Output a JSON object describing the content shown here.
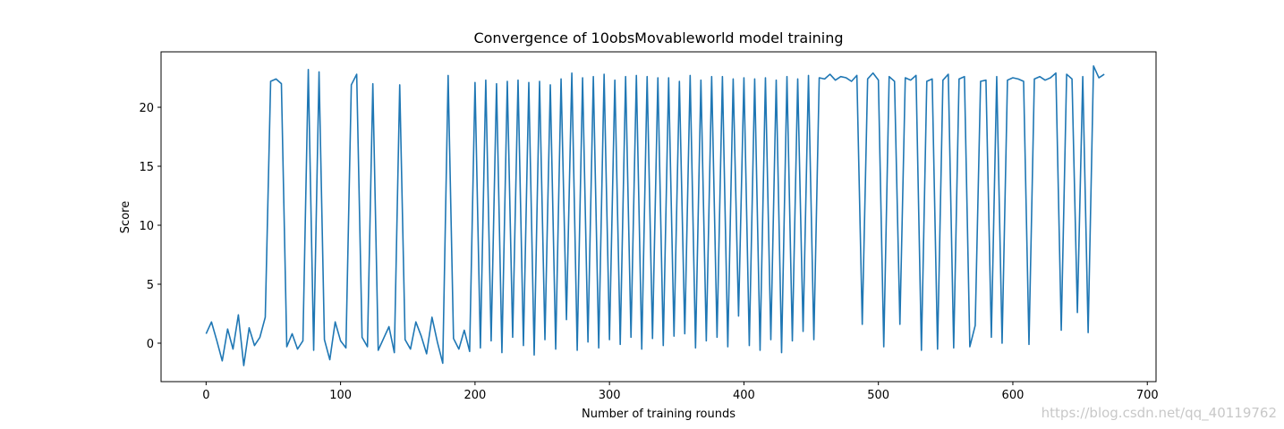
{
  "chart_data": {
    "type": "line",
    "title": "Convergence of 10obsMovableworld model training",
    "x_label": "Number of training rounds",
    "y_label": "Score",
    "watermark": "https://blog.csdn.net/qq_40119762",
    "color": "#1f77b4",
    "x": [
      0,
      4,
      8,
      12,
      16,
      20,
      24,
      28,
      32,
      36,
      40,
      44,
      48,
      52,
      56,
      60,
      64,
      68,
      72,
      76,
      80,
      84,
      88,
      92,
      96,
      100,
      104,
      108,
      112,
      116,
      120,
      124,
      128,
      132,
      136,
      140,
      144,
      148,
      152,
      156,
      160,
      164,
      168,
      172,
      176,
      180,
      184,
      188,
      192,
      196,
      200,
      204,
      208,
      212,
      216,
      220,
      224,
      228,
      232,
      236,
      240,
      244,
      248,
      252,
      256,
      260,
      264,
      268,
      272,
      276,
      280,
      284,
      288,
      292,
      296,
      300,
      304,
      308,
      312,
      316,
      320,
      324,
      328,
      332,
      336,
      340,
      344,
      348,
      352,
      356,
      360,
      364,
      368,
      372,
      376,
      380,
      384,
      388,
      392,
      396,
      400,
      404,
      408,
      412,
      416,
      420,
      424,
      428,
      432,
      436,
      440,
      444,
      448,
      452,
      456,
      460,
      464,
      468,
      472,
      476,
      480,
      484,
      488,
      492,
      496,
      500,
      504,
      508,
      512,
      516,
      520,
      524,
      528,
      532,
      536,
      540,
      544,
      548,
      552,
      556,
      560,
      564,
      568,
      572,
      576,
      580,
      584,
      588,
      592,
      596,
      600,
      604,
      608,
      612,
      616,
      620,
      624,
      628,
      632,
      636,
      640,
      644,
      648,
      652,
      656,
      660,
      664,
      668
    ],
    "values": [
      0.8,
      1.8,
      0.2,
      -1.5,
      1.2,
      -0.5,
      2.4,
      -1.9,
      1.3,
      -0.2,
      0.5,
      2.2,
      22.2,
      22.4,
      22.0,
      -0.3,
      0.8,
      -0.5,
      0.2,
      23.2,
      -0.6,
      23.0,
      0.3,
      -1.4,
      1.8,
      0.2,
      -0.4,
      21.9,
      22.8,
      0.5,
      -0.3,
      22.0,
      -0.6,
      0.4,
      1.4,
      -0.8,
      21.9,
      0.3,
      -0.5,
      1.8,
      0.6,
      -0.9,
      2.2,
      0.1,
      -1.7,
      22.7,
      0.4,
      -0.5,
      1.1,
      -0.7,
      22.1,
      -0.4,
      22.3,
      0.2,
      22.0,
      -0.8,
      22.2,
      0.5,
      22.3,
      -0.2,
      22.1,
      -1.0,
      22.2,
      0.3,
      21.9,
      -0.5,
      22.4,
      2.0,
      22.9,
      -0.6,
      22.5,
      0.1,
      22.6,
      -0.4,
      22.8,
      0.3,
      22.3,
      -0.1,
      22.6,
      0.5,
      22.7,
      -0.5,
      22.6,
      0.4,
      22.5,
      -0.2,
      22.5,
      0.6,
      22.2,
      0.8,
      22.7,
      -0.4,
      22.3,
      0.2,
      22.6,
      0.5,
      22.6,
      -0.3,
      22.4,
      2.3,
      22.5,
      -0.2,
      22.4,
      -0.6,
      22.5,
      0.3,
      22.3,
      -0.8,
      22.6,
      0.2,
      22.4,
      1.0,
      22.7,
      0.3,
      22.5,
      22.4,
      22.8,
      22.3,
      22.6,
      22.5,
      22.2,
      22.7,
      1.6,
      22.4,
      22.9,
      22.3,
      -0.3,
      22.6,
      22.2,
      1.6,
      22.5,
      22.3,
      22.7,
      -0.6,
      22.2,
      22.4,
      -0.5,
      22.3,
      22.8,
      -0.4,
      22.4,
      22.6,
      -0.3,
      1.5,
      22.2,
      22.3,
      0.5,
      22.6,
      0.0,
      22.3,
      22.5,
      22.4,
      22.2,
      -0.1,
      22.4,
      22.6,
      22.3,
      22.5,
      22.9,
      1.1,
      22.8,
      22.4,
      2.6,
      22.6,
      0.9,
      23.5,
      22.5,
      22.8
    ],
    "xlim": [
      -33.5,
      706.5
    ],
    "ylim": [
      -3.26,
      24.7
    ],
    "xticks": [
      0,
      100,
      200,
      300,
      400,
      500,
      600,
      700
    ],
    "yticks": [
      0,
      5,
      10,
      15,
      20
    ],
    "grid": false
  }
}
